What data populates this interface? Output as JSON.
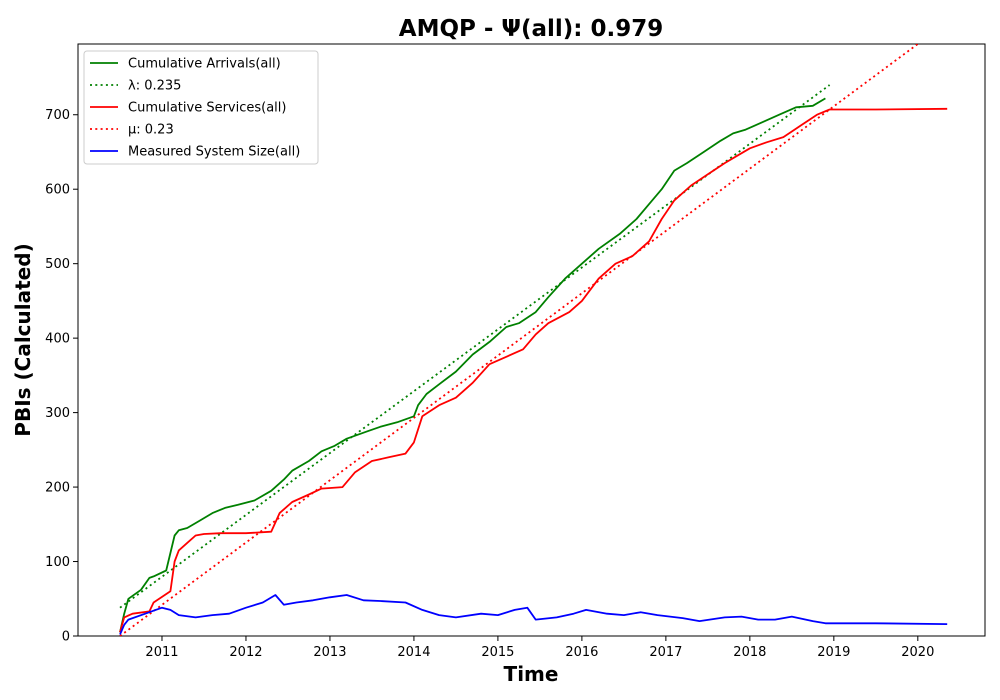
{
  "chart_data": {
    "type": "line",
    "title": "AMQP -  Ψ(all): 0.979",
    "xlabel": "Time",
    "ylabel": "PBIs (Calculated)",
    "xlim": [
      2010.0,
      2020.8
    ],
    "ylim": [
      0,
      795
    ],
    "x_ticks": [
      2011,
      2012,
      2013,
      2014,
      2015,
      2016,
      2017,
      2018,
      2019,
      2020
    ],
    "y_ticks": [
      0,
      100,
      200,
      300,
      400,
      500,
      600,
      700
    ],
    "legend_position": "upper-left",
    "series": [
      {
        "name": "Cumulative Arrivals(all)",
        "color": "#008000",
        "style": "solid",
        "x": [
          2010.5,
          2010.55,
          2010.6,
          2010.7,
          2010.75,
          2010.85,
          2010.9,
          2011.05,
          2011.15,
          2011.2,
          2011.3,
          2011.45,
          2011.6,
          2011.75,
          2011.9,
          2012.1,
          2012.3,
          2012.45,
          2012.55,
          2012.75,
          2012.9,
          2013.05,
          2013.2,
          2013.45,
          2013.6,
          2013.8,
          2014.0,
          2014.05,
          2014.15,
          2014.3,
          2014.5,
          2014.7,
          2014.9,
          2015.1,
          2015.25,
          2015.45,
          2015.6,
          2015.8,
          2016.0,
          2016.2,
          2016.45,
          2016.65,
          2016.8,
          2016.95,
          2017.1,
          2017.25,
          2017.45,
          2017.65,
          2017.8,
          2017.95,
          2018.15,
          2018.35,
          2018.55,
          2018.75,
          2018.9
        ],
        "values": [
          5,
          30,
          50,
          58,
          62,
          78,
          80,
          88,
          135,
          142,
          145,
          155,
          165,
          172,
          176,
          182,
          195,
          210,
          222,
          235,
          248,
          255,
          265,
          275,
          281,
          287,
          295,
          310,
          325,
          338,
          355,
          378,
          395,
          415,
          420,
          435,
          455,
          480,
          500,
          520,
          540,
          560,
          580,
          600,
          625,
          635,
          650,
          665,
          675,
          680,
          690,
          700,
          710,
          712,
          722
        ]
      },
      {
        "name": "λ: 0.235",
        "color": "#008000",
        "style": "dotted",
        "x": [
          2010.5,
          2018.95
        ],
        "values": [
          38,
          740
        ]
      },
      {
        "name": "Cumulative Services(all)",
        "color": "#ff0000",
        "style": "solid",
        "x": [
          2010.5,
          2010.55,
          2010.65,
          2010.85,
          2010.9,
          2011.1,
          2011.15,
          2011.2,
          2011.3,
          2011.4,
          2011.5,
          2011.7,
          2012.0,
          2012.3,
          2012.4,
          2012.55,
          2012.75,
          2012.9,
          2013.15,
          2013.3,
          2013.5,
          2013.7,
          2013.9,
          2014.0,
          2014.1,
          2014.3,
          2014.5,
          2014.7,
          2014.9,
          2015.1,
          2015.3,
          2015.45,
          2015.6,
          2015.85,
          2016.0,
          2016.2,
          2016.4,
          2016.6,
          2016.8,
          2016.95,
          2017.1,
          2017.3,
          2017.5,
          2017.7,
          2017.85,
          2018.0,
          2018.2,
          2018.4,
          2018.6,
          2018.8,
          2018.95,
          2019.5,
          2020.35
        ],
        "values": [
          5,
          25,
          30,
          33,
          45,
          60,
          100,
          115,
          125,
          135,
          137,
          138,
          138,
          140,
          165,
          180,
          190,
          198,
          200,
          220,
          235,
          240,
          245,
          260,
          295,
          310,
          320,
          340,
          365,
          375,
          385,
          405,
          420,
          435,
          450,
          480,
          500,
          510,
          530,
          560,
          585,
          605,
          620,
          635,
          645,
          655,
          663,
          670,
          685,
          700,
          707,
          707,
          708
        ]
      },
      {
        "name": "μ: 0.23",
        "color": "#ff0000",
        "style": "dotted",
        "x": [
          2010.5,
          2020.0
        ],
        "values": [
          0,
          795
        ]
      },
      {
        "name": "Measured System Size(all)",
        "color": "#0000ff",
        "style": "solid",
        "x": [
          2010.5,
          2010.55,
          2010.6,
          2010.8,
          2011.0,
          2011.1,
          2011.2,
          2011.4,
          2011.6,
          2011.8,
          2012.0,
          2012.2,
          2012.35,
          2012.45,
          2012.6,
          2012.8,
          2013.0,
          2013.2,
          2013.4,
          2013.6,
          2013.9,
          2014.1,
          2014.3,
          2014.5,
          2014.8,
          2015.0,
          2015.2,
          2015.35,
          2015.45,
          2015.7,
          2015.9,
          2016.05,
          2016.3,
          2016.5,
          2016.7,
          2016.9,
          2017.2,
          2017.4,
          2017.7,
          2017.9,
          2018.1,
          2018.3,
          2018.5,
          2018.75,
          2018.9,
          2019.5,
          2020.35
        ],
        "values": [
          2,
          15,
          22,
          30,
          38,
          35,
          28,
          25,
          28,
          30,
          38,
          45,
          55,
          42,
          45,
          48,
          52,
          55,
          48,
          47,
          45,
          35,
          28,
          25,
          30,
          28,
          35,
          38,
          22,
          25,
          30,
          35,
          30,
          28,
          32,
          28,
          24,
          20,
          25,
          26,
          22,
          22,
          26,
          20,
          17,
          17,
          16
        ]
      }
    ]
  }
}
